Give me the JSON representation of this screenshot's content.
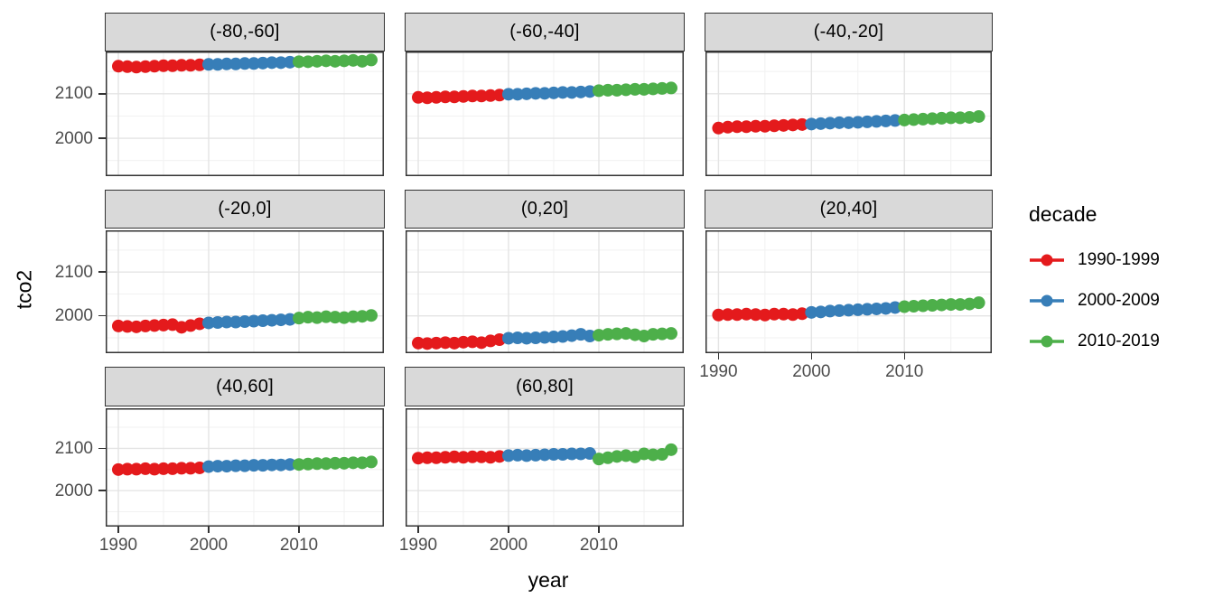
{
  "chart_data": {
    "type": "scatter",
    "title": "",
    "xlabel": "year",
    "ylabel": "tco2",
    "grid": true,
    "legend_title": "decade",
    "legend_position": "right",
    "xlim": [
      1988.6,
      2019.4
    ],
    "ylim": [
      1915,
      2195
    ],
    "x_ticks": [
      1990,
      2000,
      2010
    ],
    "y_ticks": [
      2100,
      2000
    ],
    "x_minor_ticks": [
      1995,
      2005,
      2015
    ],
    "y_minor_ticks": [
      2150,
      2050,
      1950
    ],
    "decades": [
      {
        "name": "1990-1999",
        "color": "#E41A1C",
        "years": [
          1990,
          1991,
          1992,
          1993,
          1994,
          1995,
          1996,
          1997,
          1998,
          1999
        ]
      },
      {
        "name": "2000-2009",
        "color": "#377EB8",
        "years": [
          2000,
          2001,
          2002,
          2003,
          2004,
          2005,
          2006,
          2007,
          2008,
          2009
        ]
      },
      {
        "name": "2010-2019",
        "color": "#4DAF4A",
        "years": [
          2010,
          2011,
          2012,
          2013,
          2014,
          2015,
          2016,
          2017,
          2018
        ]
      }
    ],
    "facets": [
      {
        "label": "(-80,-60]",
        "values": {
          "1990-1999": [
            2162,
            2161,
            2160,
            2161,
            2162,
            2163,
            2163,
            2164,
            2164,
            2165
          ],
          "2000-2009": [
            2166,
            2166,
            2167,
            2167,
            2168,
            2168,
            2169,
            2170,
            2170,
            2171
          ],
          "2010-2019": [
            2172,
            2172,
            2173,
            2174,
            2173,
            2174,
            2175,
            2173,
            2176
          ]
        }
      },
      {
        "label": "(-60,-40]",
        "values": {
          "1990-1999": [
            2092,
            2091,
            2092,
            2093,
            2093,
            2094,
            2095,
            2095,
            2096,
            2097
          ],
          "2000-2009": [
            2099,
            2099,
            2100,
            2101,
            2101,
            2102,
            2103,
            2103,
            2104,
            2105
          ],
          "2010-2019": [
            2107,
            2108,
            2108,
            2109,
            2110,
            2110,
            2111,
            2112,
            2113
          ]
        }
      },
      {
        "label": "(-40,-20]",
        "values": {
          "1990-1999": [
            2023,
            2025,
            2026,
            2026,
            2027,
            2027,
            2028,
            2029,
            2030,
            2031
          ],
          "2000-2009": [
            2032,
            2033,
            2034,
            2035,
            2035,
            2036,
            2037,
            2038,
            2039,
            2040
          ],
          "2010-2019": [
            2041,
            2042,
            2043,
            2044,
            2045,
            2046,
            2046,
            2047,
            2049
          ]
        }
      },
      {
        "label": "(-20,0]",
        "values": {
          "1990-1999": [
            1977,
            1976,
            1975,
            1977,
            1978,
            1979,
            1980,
            1974,
            1978,
            1982
          ],
          "2000-2009": [
            1984,
            1985,
            1986,
            1986,
            1987,
            1988,
            1989,
            1990,
            1991,
            1992
          ],
          "2010-2019": [
            1995,
            1997,
            1996,
            1998,
            1997,
            1996,
            1998,
            1999,
            2001
          ]
        }
      },
      {
        "label": "(0,20]",
        "values": {
          "1990-1999": [
            1938,
            1937,
            1938,
            1939,
            1938,
            1940,
            1941,
            1939,
            1943,
            1946
          ],
          "2000-2009": [
            1949,
            1950,
            1949,
            1950,
            1951,
            1952,
            1953,
            1955,
            1958,
            1954
          ],
          "2010-2019": [
            1956,
            1958,
            1959,
            1960,
            1957,
            1954,
            1958,
            1959,
            1960
          ]
        }
      },
      {
        "label": "(20,40]",
        "values": {
          "1990-1999": [
            2002,
            2003,
            2003,
            2004,
            2003,
            2002,
            2004,
            2004,
            2003,
            2005
          ],
          "2000-2009": [
            2008,
            2009,
            2011,
            2012,
            2013,
            2014,
            2015,
            2016,
            2017,
            2019
          ],
          "2010-2019": [
            2021,
            2022,
            2023,
            2024,
            2025,
            2026,
            2026,
            2027,
            2030
          ]
        }
      },
      {
        "label": "(40,60]",
        "values": {
          "1990-1999": [
            2050,
            2051,
            2051,
            2052,
            2051,
            2052,
            2052,
            2053,
            2053,
            2054
          ],
          "2000-2009": [
            2057,
            2058,
            2058,
            2059,
            2059,
            2060,
            2060,
            2061,
            2061,
            2062
          ],
          "2010-2019": [
            2062,
            2063,
            2064,
            2064,
            2065,
            2065,
            2066,
            2066,
            2068
          ]
        }
      },
      {
        "label": "(60,80]",
        "values": {
          "1990-1999": [
            2077,
            2078,
            2078,
            2079,
            2080,
            2079,
            2080,
            2080,
            2079,
            2081
          ],
          "2000-2009": [
            2083,
            2084,
            2083,
            2084,
            2085,
            2086,
            2086,
            2087,
            2087,
            2088
          ],
          "2010-2019": [
            2075,
            2078,
            2081,
            2083,
            2080,
            2087,
            2085,
            2086,
            2097
          ]
        }
      }
    ]
  },
  "colors": {
    "panel_background": "#ffffff",
    "strip_background": "#d9d9d9",
    "panel_border": "#333333",
    "grid_major": "#e4e4e4",
    "grid_minor": "#f1f1f1",
    "tick_text": "#4d4d4d",
    "decade_1990": "#E41A1C",
    "decade_2000": "#377EB8",
    "decade_2010": "#4DAF4A"
  }
}
